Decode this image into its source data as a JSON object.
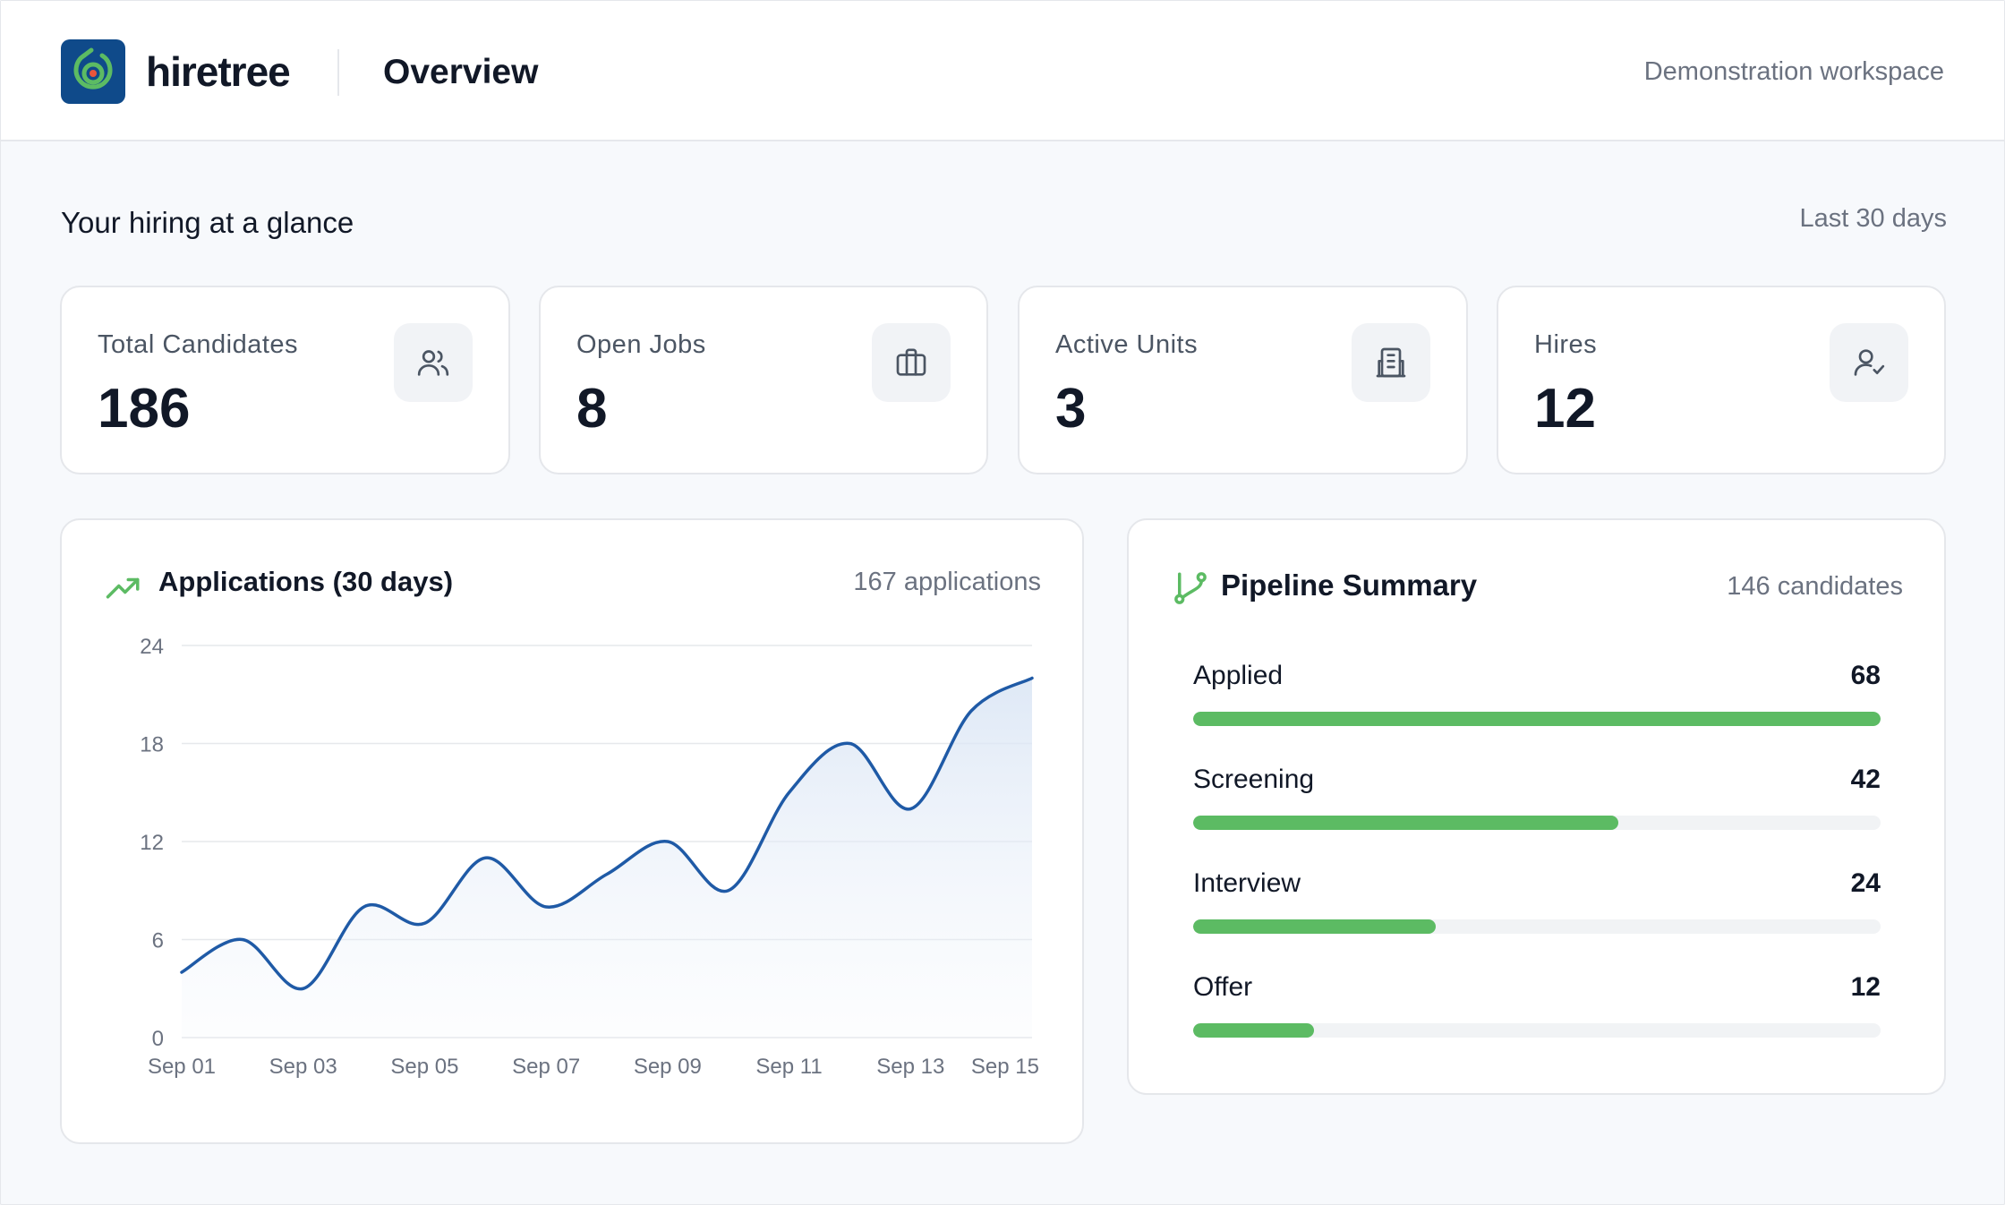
{
  "header": {
    "brand": "hiretree",
    "page_title": "Overview",
    "workspace": "Demonstration workspace"
  },
  "section": {
    "title": "Your hiring at a glance",
    "range": "Last 30 days"
  },
  "stats": [
    {
      "label": "Total Candidates",
      "value": "186",
      "icon": "users-icon"
    },
    {
      "label": "Open Jobs",
      "value": "8",
      "icon": "briefcase-icon"
    },
    {
      "label": "Active Units",
      "value": "3",
      "icon": "building-icon"
    },
    {
      "label": "Hires",
      "value": "12",
      "icon": "user-check-icon"
    }
  ],
  "applications": {
    "title": "Applications (30 days)",
    "meta": "167 applications",
    "icon": "trending-up-icon"
  },
  "pipeline": {
    "title": "Pipeline Summary",
    "meta": "146 candidates",
    "icon": "git-branch-icon",
    "stages": [
      {
        "name": "Applied",
        "count": "68",
        "fraction": 1.0
      },
      {
        "name": "Screening",
        "count": "42",
        "fraction": 0.618
      },
      {
        "name": "Interview",
        "count": "24",
        "fraction": 0.353
      },
      {
        "name": "Offer",
        "count": "12",
        "fraction": 0.176
      }
    ]
  },
  "colors": {
    "accent_green": "#5cbb63",
    "line_blue": "#1f5aa6",
    "logo_bg": "#0f4a8a"
  },
  "chart_data": {
    "type": "line",
    "title": "Applications (30 days)",
    "xlabel": "",
    "ylabel": "",
    "ylim": [
      0,
      24
    ],
    "yticks": [
      0,
      6,
      12,
      18,
      24
    ],
    "x_tick_labels": [
      "Sep 01",
      "Sep 03",
      "Sep 05",
      "Sep 07",
      "Sep 09",
      "Sep 11",
      "Sep 13",
      "Sep 15"
    ],
    "x": [
      "Sep 01",
      "Sep 02",
      "Sep 03",
      "Sep 04",
      "Sep 05",
      "Sep 06",
      "Sep 07",
      "Sep 08",
      "Sep 09",
      "Sep 10",
      "Sep 11",
      "Sep 12",
      "Sep 13",
      "Sep 14",
      "Sep 15"
    ],
    "series": [
      {
        "values": [
          4,
          6,
          3,
          8,
          7,
          11,
          8,
          10,
          12,
          9,
          15,
          18,
          14,
          20,
          22
        ]
      }
    ],
    "grid": true,
    "area_fill": true
  }
}
